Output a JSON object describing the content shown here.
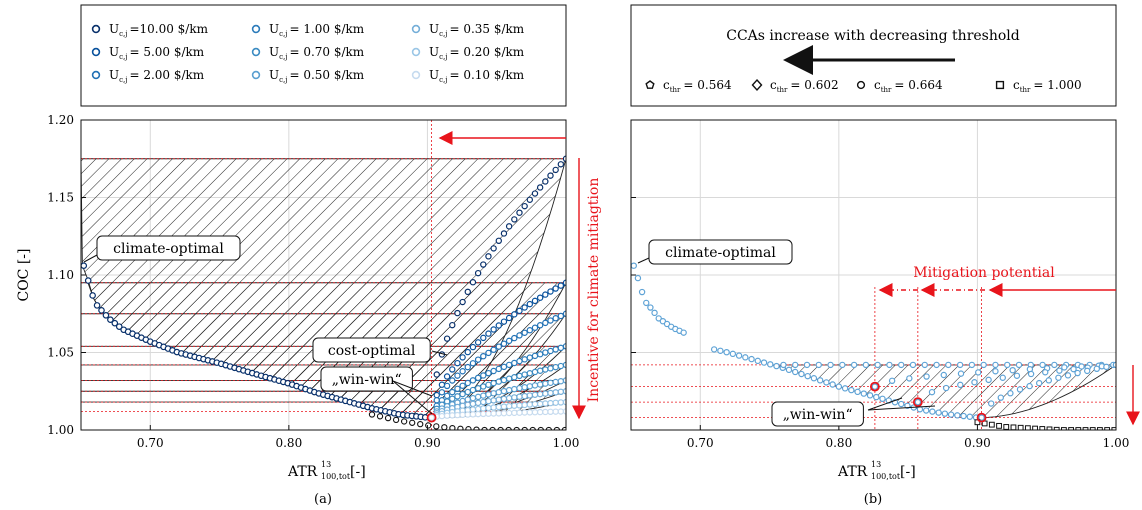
{
  "chart_data": [
    {
      "panel": "(a)",
      "type": "scatter",
      "xlabel": "ATR",
      "xlabel_sup": "13",
      "xlabel_sub": "100,tot",
      "xlabel_unit": "[-]",
      "ylabel": "COC [-]",
      "xlim": [
        0.65,
        1.0
      ],
      "ylim": [
        1.0,
        1.2
      ],
      "xticks": [
        "0.70",
        "0.80",
        "0.90",
        "1.00"
      ],
      "yticks": [
        "1.00",
        "1.05",
        "1.10",
        "1.15",
        "1.20"
      ],
      "grid": true,
      "legend_placement": "top",
      "legend_prefix": "U",
      "legend_sub": "c,j",
      "legend": [
        "=10.00 $/km",
        "= 5.00 $/km",
        "= 2.00 $/km",
        "= 1.00 $/km",
        "= 0.70 $/km",
        "= 0.50 $/km",
        "= 0.35 $/km",
        "= 0.20 $/km",
        "= 0.10 $/km"
      ],
      "series_colors": [
        "#08306b",
        "#08519c",
        "#2171b5",
        "#2b7bba",
        "#3b8bc2",
        "#5a9fd0",
        "#74aed8",
        "#9ac6e6",
        "#c6dbef"
      ],
      "base_curve": {
        "x": [
          0.652,
          0.655,
          0.66,
          0.67,
          0.68,
          0.7,
          0.72,
          0.75,
          0.78,
          0.8,
          0.82,
          0.84,
          0.86,
          0.88,
          0.9
        ],
        "y": [
          1.106,
          1.097,
          1.082,
          1.072,
          1.065,
          1.057,
          1.05,
          1.043,
          1.035,
          1.03,
          1.024,
          1.019,
          1.014,
          1.01,
          1.008
        ]
      },
      "reference_curve": {
        "x": [
          0.86,
          0.88,
          0.9,
          0.92,
          0.94,
          0.96,
          0.98,
          1.0
        ],
        "y": [
          1.01,
          1.006,
          1.003,
          1.001,
          1.0,
          1.0,
          1.0,
          1.0
        ]
      },
      "branch_ends": [
        1.175,
        1.095,
        1.075,
        1.054,
        1.042,
        1.032,
        1.025,
        1.018,
        1.012
      ],
      "hatched_levels": [
        1.175,
        1.095,
        1.075,
        1.054,
        1.042,
        1.032,
        1.025,
        1.018
      ],
      "annotations": [
        "climate-optimal",
        "cost-optimal",
        "„win-win“"
      ],
      "vertical_arrow_label": "Incentive for climate mitiagtion",
      "marker_x": 0.903,
      "marker_y": 1.008
    },
    {
      "panel": "(b)",
      "type": "scatter",
      "xlabel": "ATR",
      "xlabel_sup": "13",
      "xlabel_sub": "100,tot",
      "xlabel_unit": "[-]",
      "xlim": [
        0.65,
        1.0
      ],
      "ylim": [
        1.0,
        1.2
      ],
      "xticks": [
        "0.70",
        "0.80",
        "0.90",
        "1.00"
      ],
      "grid": true,
      "legend_placement": "top",
      "legend_title": "CCAs increase with decreasing threshold",
      "legend_prefix": "c",
      "legend_sub": "thr",
      "legend": [
        "= 0.564",
        "= 0.602",
        "= 0.664",
        "= 1.000"
      ],
      "legend_markers": [
        "pentagon",
        "diamond",
        "circle",
        "square"
      ],
      "series_color": "#5fa3d6",
      "climate_curve": {
        "x": [
          0.652,
          0.655,
          0.66,
          0.665,
          0.67,
          0.68,
          0.69
        ],
        "y": [
          1.106,
          1.098,
          1.083,
          1.078,
          1.072,
          1.066,
          1.062
        ]
      },
      "lower_curve": {
        "x": [
          0.71,
          0.72,
          0.74,
          0.76,
          0.78,
          0.8,
          0.82,
          0.84,
          0.86,
          0.88,
          0.9
        ],
        "y": [
          1.052,
          1.05,
          1.045,
          1.04,
          1.034,
          1.028,
          1.023,
          1.018,
          1.013,
          1.01,
          1.008
        ]
      },
      "reference_curve": {
        "x": [
          0.9,
          0.92,
          0.94,
          0.96,
          0.98,
          1.0
        ],
        "y": [
          1.005,
          1.002,
          1.001,
          1.0,
          1.0,
          1.0
        ]
      },
      "plateau_y": 1.042,
      "threshold_markers": [
        {
          "x": 0.826,
          "y": 1.028
        },
        {
          "x": 0.857,
          "y": 1.018
        },
        {
          "x": 0.903,
          "y": 1.008
        }
      ],
      "annotations": [
        "climate-optimal",
        "„win-win“",
        "Mitigation potential"
      ]
    }
  ],
  "panel_labels": [
    "(a)",
    "(b)"
  ],
  "colors": {
    "accent_red": "#e8141b",
    "hatch": "#222222"
  }
}
